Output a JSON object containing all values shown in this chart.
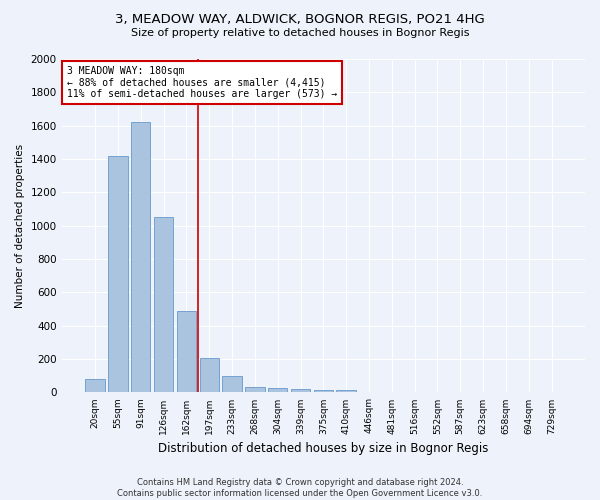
{
  "title_line1": "3, MEADOW WAY, ALDWICK, BOGNOR REGIS, PO21 4HG",
  "title_line2": "Size of property relative to detached houses in Bognor Regis",
  "xlabel": "Distribution of detached houses by size in Bognor Regis",
  "ylabel": "Number of detached properties",
  "categories": [
    "20sqm",
    "55sqm",
    "91sqm",
    "126sqm",
    "162sqm",
    "197sqm",
    "233sqm",
    "268sqm",
    "304sqm",
    "339sqm",
    "375sqm",
    "410sqm",
    "446sqm",
    "481sqm",
    "516sqm",
    "552sqm",
    "587sqm",
    "623sqm",
    "658sqm",
    "694sqm",
    "729sqm"
  ],
  "values": [
    80,
    1420,
    1620,
    1050,
    490,
    205,
    100,
    35,
    25,
    20,
    15,
    15,
    0,
    0,
    0,
    0,
    0,
    0,
    0,
    0,
    0
  ],
  "bar_color": "#aac4e0",
  "bar_edge_color": "#6699cc",
  "marker_label_line1": "3 MEADOW WAY: 180sqm",
  "marker_label_line2": "← 88% of detached houses are smaller (4,415)",
  "marker_label_line3": "11% of semi-detached houses are larger (573) →",
  "marker_color": "#cc0000",
  "ylim": [
    0,
    2000
  ],
  "yticks": [
    0,
    200,
    400,
    600,
    800,
    1000,
    1200,
    1400,
    1600,
    1800,
    2000
  ],
  "footer1": "Contains HM Land Registry data © Crown copyright and database right 2024.",
  "footer2": "Contains public sector information licensed under the Open Government Licence v3.0.",
  "bg_color": "#eef2fa",
  "plot_bg_color": "#eef2fa"
}
